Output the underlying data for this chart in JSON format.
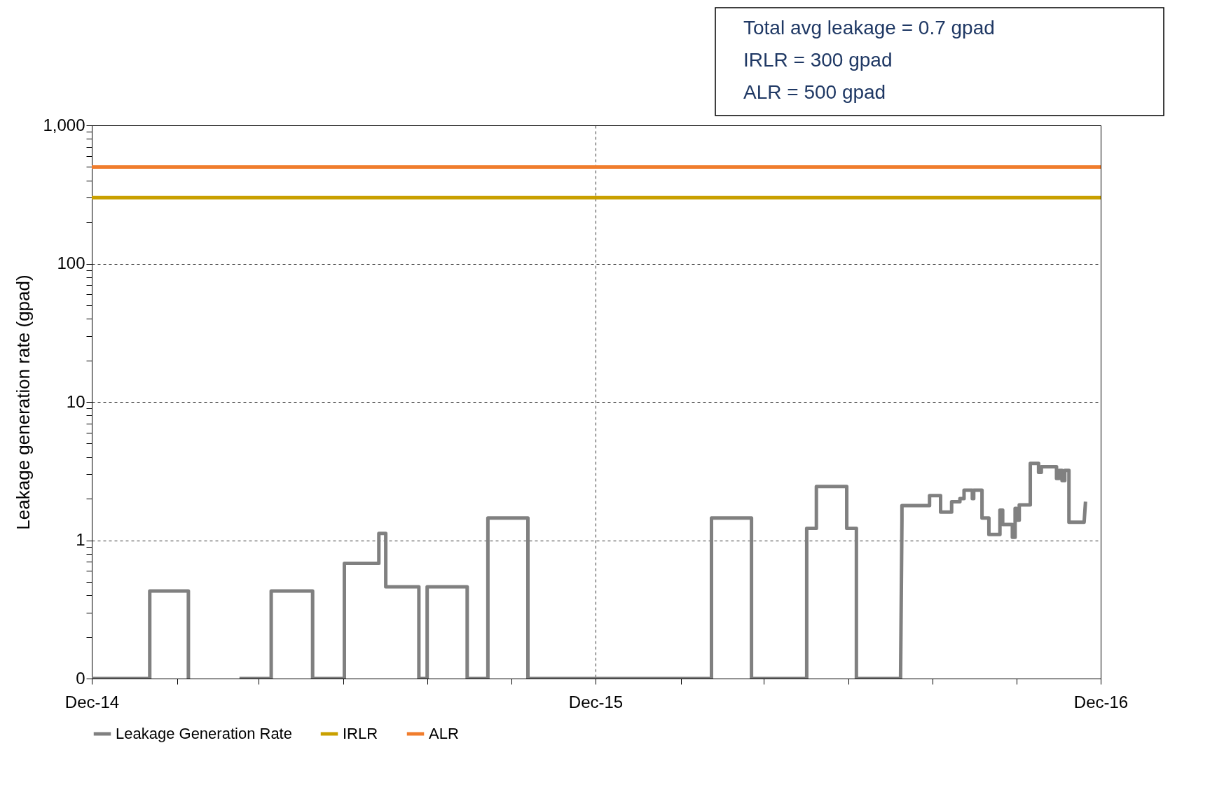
{
  "chart_data": {
    "type": "line",
    "ylabel": "Leakage generation rate (gpad)",
    "log": true,
    "grid": true,
    "legend": "bottom",
    "xlim": [
      "2014-12-01",
      "2016-12-01"
    ],
    "xticks": [
      {
        "value": "2014-12-01",
        "label": "Dec-14"
      },
      {
        "value": "2015-02-01",
        "label": null
      },
      {
        "value": "2015-04-01",
        "label": null
      },
      {
        "value": "2015-06-01",
        "label": null
      },
      {
        "value": "2015-08-01",
        "label": null
      },
      {
        "value": "2015-10-01",
        "label": null
      },
      {
        "value": "2015-12-01",
        "label": "Dec-15"
      },
      {
        "value": "2016-02-01",
        "label": null
      },
      {
        "value": "2016-04-01",
        "label": null
      },
      {
        "value": "2016-06-01",
        "label": null
      },
      {
        "value": "2016-08-01",
        "label": null
      },
      {
        "value": "2016-10-01",
        "label": null
      },
      {
        "value": "2016-12-01",
        "label": "Dec-16"
      }
    ],
    "ylim": [
      0.1,
      1000
    ],
    "yticks": [
      {
        "value": 0.1,
        "label": "0"
      },
      {
        "value": 0.2,
        "label": null
      },
      {
        "value": 0.3,
        "label": null
      },
      {
        "value": 0.4,
        "label": null
      },
      {
        "value": 0.5,
        "label": null
      },
      {
        "value": 0.6,
        "label": null
      },
      {
        "value": 0.7,
        "label": null
      },
      {
        "value": 0.8,
        "label": null
      },
      {
        "value": 0.9,
        "label": null
      },
      1,
      {
        "value": 2,
        "label": null
      },
      {
        "value": 3,
        "label": null
      },
      {
        "value": 4,
        "label": null
      },
      {
        "value": 5,
        "label": null
      },
      {
        "value": 6,
        "label": null
      },
      {
        "value": 7,
        "label": null
      },
      {
        "value": 8,
        "label": null
      },
      {
        "value": 9,
        "label": null
      },
      10,
      {
        "value": 20,
        "label": null
      },
      {
        "value": 30,
        "label": null
      },
      {
        "value": 40,
        "label": null
      },
      {
        "value": 50,
        "label": null
      },
      {
        "value": 60,
        "label": null
      },
      {
        "value": 70,
        "label": null
      },
      {
        "value": 80,
        "label": null
      },
      {
        "value": 90,
        "label": null
      },
      100,
      {
        "value": 200,
        "label": null
      },
      {
        "value": 300,
        "label": null
      },
      {
        "value": 400,
        "label": null
      },
      {
        "value": 500,
        "label": null
      },
      {
        "value": 600,
        "label": null
      },
      {
        "value": 700,
        "label": null
      },
      {
        "value": 800,
        "label": null
      },
      {
        "value": 900,
        "label": null
      },
      {
        "value": 1000,
        "label": "1,000"
      }
    ],
    "annotations": [
      "Total avg leakage = 0.7 gpad",
      "IRLR = 300 gpad",
      "ALR = 500 gpad"
    ],
    "series": [
      {
        "name": "Leakage Generation Rate",
        "type": "line",
        "color": "#808080",
        "x": [
          "2014-12-01",
          "2015-01-12",
          "2015-01-12",
          "2015-02-09",
          "2015-02-09",
          "2015-02-10",
          "2015-03-18",
          "2015-04-10",
          "2015-04-10",
          "2015-05-10",
          "2015-05-10",
          "2015-06-02",
          "2015-06-02",
          "2015-06-27",
          "2015-06-27",
          "2015-07-02",
          "2015-07-02",
          "2015-07-26",
          "2015-07-26",
          "2015-08-01",
          "2015-08-01",
          "2015-08-30",
          "2015-08-30",
          "2015-09-14",
          "2015-09-14",
          "2015-10-13",
          "2015-10-13",
          "2016-02-23",
          "2016-02-23",
          "2016-03-23",
          "2016-03-23",
          "2016-05-02",
          "2016-05-02",
          "2016-05-09",
          "2016-05-09",
          "2016-05-31",
          "2016-05-31",
          "2016-06-07",
          "2016-06-07",
          "2016-07-09",
          "2016-07-10",
          "2016-07-10",
          "2016-07-30",
          "2016-07-30",
          "2016-08-07",
          "2016-08-07",
          "2016-08-15",
          "2016-08-15",
          "2016-08-21",
          "2016-08-21",
          "2016-08-24",
          "2016-08-24",
          "2016-08-30",
          "2016-08-30",
          "2016-08-31",
          "2016-08-31",
          "2016-09-06",
          "2016-09-06",
          "2016-09-11",
          "2016-09-11",
          "2016-09-19",
          "2016-09-19",
          "2016-09-21",
          "2016-09-21",
          "2016-09-28",
          "2016-09-28",
          "2016-09-30",
          "2016-09-30",
          "2016-10-01",
          "2016-10-01",
          "2016-10-03",
          "2016-10-03",
          "2016-10-11",
          "2016-10-11",
          "2016-10-17",
          "2016-10-17",
          "2016-10-19",
          "2016-10-19",
          "2016-10-30",
          "2016-10-30",
          "2016-11-01",
          "2016-11-01",
          "2016-11-03",
          "2016-11-03",
          "2016-11-05",
          "2016-11-05",
          "2016-11-08",
          "2016-11-08",
          "2016-11-19",
          "2016-11-20"
        ],
        "values": [
          0.1,
          0.1,
          0.43,
          0.43,
          0.1,
          null,
          0.1,
          0.1,
          0.43,
          0.43,
          0.1,
          0.1,
          0.68,
          0.68,
          1.12,
          1.12,
          0.46,
          0.46,
          0.1,
          0.1,
          0.46,
          0.46,
          0.1,
          0.1,
          1.45,
          1.45,
          0.1,
          0.1,
          1.45,
          1.45,
          0.1,
          0.1,
          1.22,
          1.22,
          2.45,
          2.45,
          1.22,
          1.22,
          0.1,
          0.1,
          1.4,
          1.78,
          1.78,
          2.1,
          2.1,
          1.6,
          1.6,
          1.9,
          1.9,
          2.0,
          2.0,
          2.3,
          2.3,
          2.0,
          2.0,
          2.3,
          2.3,
          1.45,
          1.45,
          1.1,
          1.1,
          1.65,
          1.65,
          1.3,
          1.3,
          1.05,
          1.05,
          1.7,
          1.7,
          1.4,
          1.4,
          1.8,
          1.8,
          3.6,
          3.6,
          3.1,
          3.1,
          3.4,
          3.4,
          2.8,
          2.8,
          3.2,
          3.2,
          2.7,
          2.7,
          3.2,
          3.2,
          1.35,
          1.35,
          1.9
        ]
      },
      {
        "name": "IRLR",
        "type": "line",
        "color": "#c9a000",
        "x": [
          "2014-12-01",
          "2016-12-01"
        ],
        "values": [
          300,
          300
        ]
      },
      {
        "name": "ALR",
        "type": "line",
        "color": "#f07d2d",
        "x": [
          "2014-12-01",
          "2016-12-01"
        ],
        "values": [
          500,
          500
        ]
      }
    ]
  }
}
